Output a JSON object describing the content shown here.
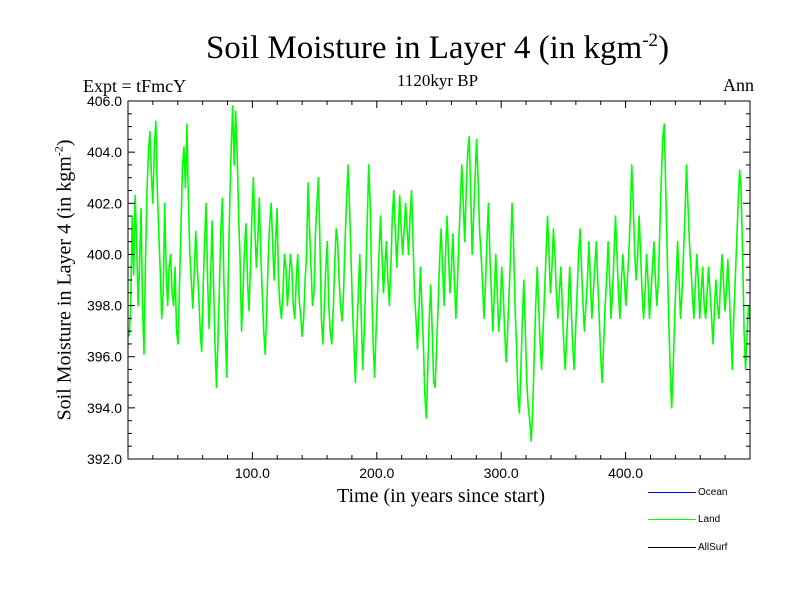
{
  "chart_data": {
    "type": "line",
    "title_main": "Soil Moisture in Layer 4 (in kgm",
    "title_sup": "-2",
    "title_end": ")",
    "subtitle": "1120kyr BP",
    "expt_label": "Expt = tFmcY",
    "season_label": "Ann",
    "ylabel_main": "Soil Moisture in Layer 4 (in kgm",
    "ylabel_sup": "-2",
    "ylabel_end": ")",
    "xlabel": "Time (in years since start)",
    "xlim": [
      0,
      500
    ],
    "ylim": [
      392.0,
      406.0
    ],
    "xticks": [
      100,
      200,
      300,
      400
    ],
    "xtick_labels": [
      "100.0",
      "200.0",
      "300.0",
      "400.0"
    ],
    "yticks": [
      392,
      394,
      396,
      398,
      400,
      402,
      404,
      406
    ],
    "ytick_labels": [
      "392.0",
      "394.0",
      "396.0",
      "398.0",
      "400.0",
      "402.0",
      "404.0",
      "406.0"
    ],
    "series": [
      {
        "name": "Ocean",
        "color": "#0000ff",
        "values": []
      },
      {
        "name": "Land",
        "color": "#00ff00",
        "values": [
          396.8,
          398.0,
          401.5,
          399.2,
          402.3,
          400.5,
          398.0,
          399.6,
          401.8,
          397.9,
          396.1,
          399.8,
          402.5,
          404.0,
          404.8,
          403.1,
          402.0,
          404.2,
          405.2,
          402.5,
          400.8,
          399.3,
          397.5,
          398.6,
          402.0,
          399.3,
          398.0,
          399.5,
          400.0,
          398.5,
          398.0,
          399.5,
          397.0,
          396.5,
          398.8,
          401.0,
          403.4,
          404.2,
          402.6,
          405.1,
          402.2,
          400.0,
          399.0,
          397.9,
          399.3,
          400.9,
          399.5,
          398.5,
          397.0,
          396.2,
          398.7,
          400.5,
          402.0,
          399.0,
          397.1,
          398.8,
          401.3,
          399.0,
          396.5,
          394.8,
          396.6,
          398.7,
          401.0,
          402.2,
          399.0,
          397.0,
          395.2,
          399.2,
          402.0,
          404.2,
          405.8,
          403.5,
          405.6,
          404.0,
          401.5,
          399.8,
          397.0,
          398.5,
          400.3,
          401.2,
          399.0,
          397.8,
          399.5,
          401.5,
          403.0,
          401.0,
          399.5,
          400.6,
          402.2,
          400.0,
          398.5,
          397.0,
          396.1,
          397.8,
          399.8,
          401.2,
          402.0,
          400.5,
          399.0,
          400.5,
          401.8,
          399.0,
          398.0,
          397.5,
          398.5,
          400.0,
          399.5,
          398.0,
          398.8,
          400.0,
          399.5,
          398.0,
          397.5,
          399.0,
          400.0,
          398.2,
          397.6,
          396.8,
          397.5,
          399.0,
          400.0,
          402.8,
          401.0,
          399.5,
          398.0,
          398.5,
          400.8,
          402.0,
          403.0,
          400.5,
          397.5,
          396.5,
          398.0,
          399.5,
          400.5,
          398.0,
          397.0,
          396.5,
          397.8,
          399.5,
          401.0,
          400.5,
          399.0,
          398.0,
          397.4,
          398.5,
          400.5,
          402.0,
          403.5,
          402.0,
          400.0,
          398.0,
          396.5,
          395.0,
          397.0,
          398.5,
          400.0,
          397.5,
          395.5,
          397.0,
          399.0,
          401.2,
          403.5,
          402.0,
          399.0,
          396.5,
          395.2,
          397.0,
          398.5,
          400.0,
          401.5,
          400.0,
          398.5,
          399.5,
          400.5,
          399.0,
          398.0,
          399.5,
          401.5,
          402.5,
          401.0,
          399.5,
          400.8,
          402.3,
          401.0,
          400.0,
          401.0,
          402.0,
          401.0,
          400.0,
          401.5,
          402.5,
          400.5,
          398.5,
          397.5,
          396.3,
          397.8,
          399.5,
          398.0,
          396.5,
          394.5,
          393.6,
          395.5,
          397.5,
          398.8,
          397.0,
          395.0,
          394.8,
          396.5,
          398.0,
          399.8,
          401.0,
          399.5,
          398.0,
          400.0,
          401.5,
          400.0,
          398.5,
          399.5,
          400.8,
          399.0,
          397.5,
          398.8,
          400.5,
          402.0,
          403.5,
          402.0,
          400.5,
          402.5,
          404.0,
          404.6,
          402.5,
          400.0,
          401.5,
          403.0,
          404.5,
          403.0,
          401.0,
          400.0,
          399.0,
          397.5,
          398.8,
          400.5,
          402.0,
          400.0,
          398.5,
          397.0,
          398.5,
          400.0,
          398.5,
          397.0,
          397.8,
          399.5,
          398.5,
          397.0,
          395.8,
          397.0,
          398.5,
          400.0,
          402.0,
          400.5,
          398.0,
          396.5,
          394.5,
          393.8,
          395.5,
          397.5,
          399.0,
          397.0,
          395.0,
          394.0,
          393.5,
          392.7,
          394.0,
          396.0,
          398.0,
          399.5,
          398.0,
          396.5,
          395.5,
          397.0,
          398.5,
          400.0,
          401.5,
          400.0,
          398.5,
          399.5,
          401.0,
          400.0,
          398.5,
          397.5,
          398.5,
          399.5,
          398.0,
          396.5,
          395.5,
          396.8,
          398.0,
          399.5,
          398.0,
          396.5,
          395.5,
          397.0,
          398.5,
          400.0,
          401.0,
          399.5,
          398.0,
          397.0,
          398.0,
          399.0,
          400.5,
          399.0,
          397.5,
          398.5,
          399.5,
          400.5,
          399.0,
          397.5,
          396.0,
          395.0,
          396.5,
          398.0,
          399.0,
          400.5,
          399.0,
          397.5,
          398.5,
          400.0,
          401.5,
          400.0,
          398.5,
          397.5,
          399.0,
          400.0,
          399.0,
          398.0,
          399.0,
          400.0,
          401.5,
          403.5,
          402.0,
          400.0,
          399.0,
          400.0,
          401.5,
          400.0,
          398.5,
          397.5,
          398.5,
          400.0,
          399.0,
          397.5,
          398.5,
          399.5,
          400.5,
          399.0,
          398.0,
          399.0,
          401.0,
          403.0,
          404.6,
          405.1,
          402.5,
          400.0,
          397.5,
          395.5,
          394.0,
          395.5,
          397.5,
          399.0,
          400.5,
          399.0,
          397.5,
          398.5,
          400.0,
          401.5,
          403.5,
          402.0,
          400.5,
          399.5,
          398.5,
          397.5,
          398.8,
          400.0,
          399.0,
          397.5,
          398.5,
          399.5,
          398.0,
          397.5,
          398.5,
          399.5,
          398.5,
          397.5,
          396.5,
          398.0,
          399.0,
          398.0,
          397.5,
          398.8,
          400.0,
          399.0,
          397.8,
          398.5,
          399.8,
          398.5,
          397.0,
          395.5,
          397.5,
          399.0,
          400.5,
          402.0,
          403.3,
          402.5,
          400.0,
          397.0,
          395.5,
          396.8,
          398.0,
          397.5
        ]
      },
      {
        "name": "AllSurf",
        "color": "#000000",
        "values": []
      }
    ]
  },
  "legend": {
    "items": [
      {
        "label": "Ocean",
        "color": "#0000ff"
      },
      {
        "label": "Land",
        "color": "#00ff00"
      },
      {
        "label": "AllSurf",
        "color": "#000000"
      }
    ]
  }
}
